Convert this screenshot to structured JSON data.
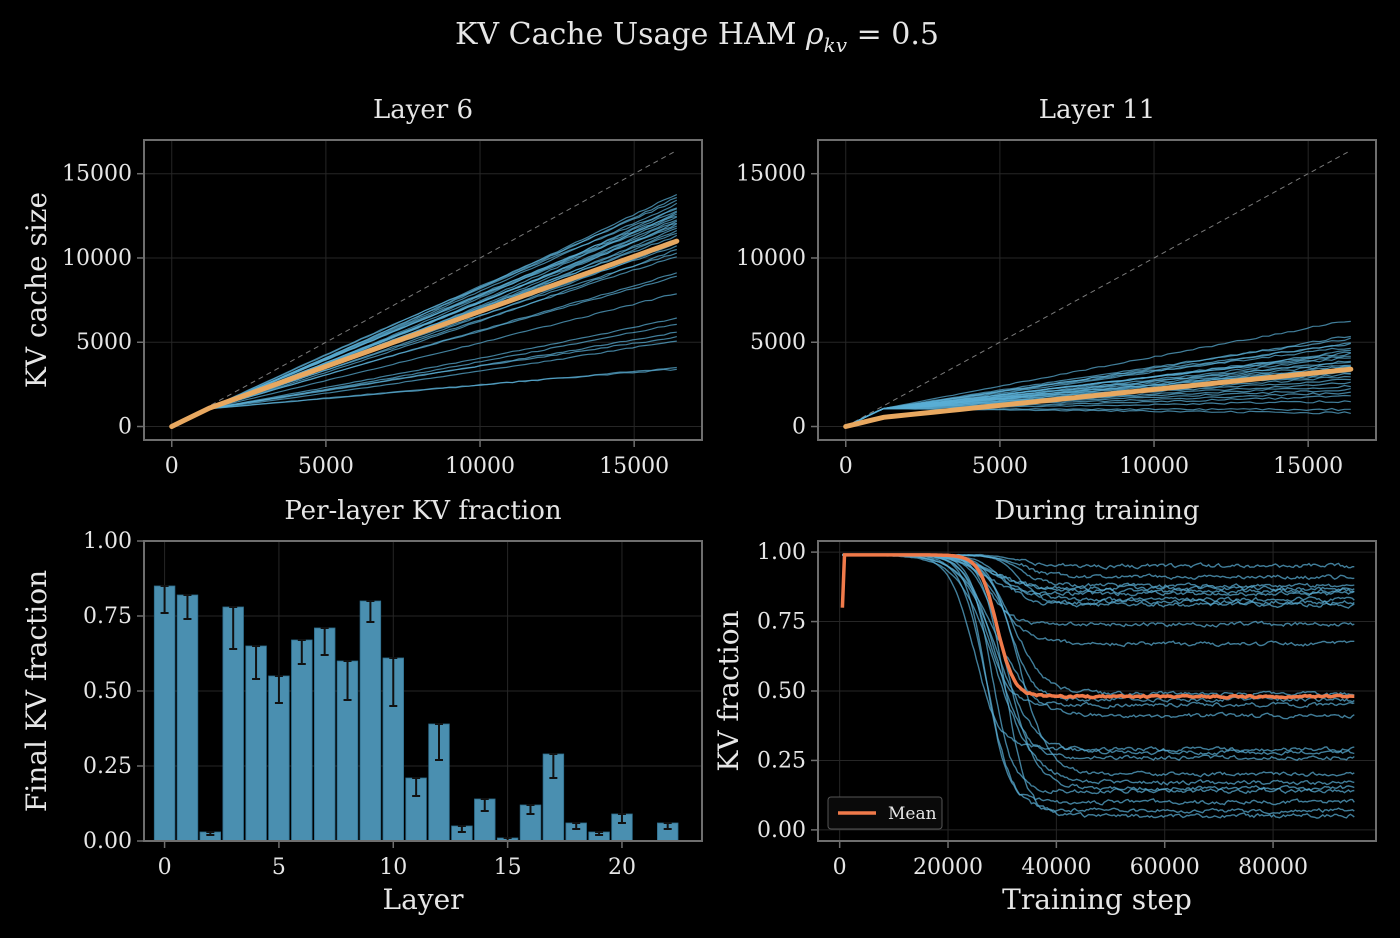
{
  "figure": {
    "title": "KV Cache Usage HAM ρkv = 0.5",
    "title_prefix": "KV Cache Usage HAM ",
    "title_symbol": "ρ",
    "title_subscript": "kv",
    "title_suffix": " = 0.5"
  },
  "colors": {
    "background": "#000000",
    "axis": "#6e6e6e",
    "grid": "#262626",
    "trace": "#5aaed6",
    "bar": "#4a8fb0",
    "mean_top": "#e8a860",
    "mean_bottom": "#f07a4a",
    "diag": "#7a7a7a",
    "text": "#e6e6e6"
  },
  "chart_data": [
    {
      "id": "layer6",
      "type": "line",
      "title": "Layer 6",
      "xlabel": "",
      "ylabel": "KV cache size",
      "xlim": [
        -900,
        17200
      ],
      "ylim": [
        -800,
        17000
      ],
      "xticks": [
        0,
        5000,
        10000,
        15000
      ],
      "xtick_labels": [
        "0",
        "5000",
        "10000",
        "15000"
      ],
      "yticks": [
        0,
        5000,
        10000,
        15000
      ],
      "ytick_labels": [
        "0",
        "5000",
        "10000",
        "15000"
      ],
      "grid": true,
      "diagonal": {
        "from": [
          0,
          0
        ],
        "to": [
          16384,
          16384
        ]
      },
      "trace_x_max": 16384,
      "trace_final_values": [
        13800,
        13600,
        13400,
        13200,
        13000,
        12900,
        12800,
        12700,
        12600,
        12500,
        12400,
        12300,
        12200,
        12100,
        12000,
        11900,
        11800,
        11600,
        11500,
        11300,
        11100,
        10900,
        10700,
        10500,
        10300,
        10100,
        9100,
        8900,
        7900,
        6400,
        6100,
        5600,
        5300,
        5100,
        3500,
        3400
      ],
      "mean": {
        "x": [
          0,
          16384
        ],
        "y": [
          0,
          11000
        ]
      }
    },
    {
      "id": "layer11",
      "type": "line",
      "title": "Layer 11",
      "xlabel": "",
      "ylabel": "",
      "xlim": [
        -900,
        17200
      ],
      "ylim": [
        -800,
        17000
      ],
      "xticks": [
        0,
        5000,
        10000,
        15000
      ],
      "xtick_labels": [
        "0",
        "5000",
        "10000",
        "15000"
      ],
      "yticks": [
        0,
        5000,
        10000,
        15000
      ],
      "ytick_labels": [
        "0",
        "5000",
        "10000",
        "15000"
      ],
      "grid": true,
      "diagonal": {
        "from": [
          0,
          0
        ],
        "to": [
          16384,
          16384
        ]
      },
      "trace_x_max": 16384,
      "trace_final_values": [
        6300,
        5400,
        5200,
        5000,
        4900,
        4700,
        4500,
        4400,
        4300,
        4200,
        4100,
        3900,
        3800,
        3700,
        3600,
        3500,
        3400,
        3300,
        3200,
        3100,
        3000,
        2800,
        2600,
        2400,
        2200,
        2000,
        1800,
        1500,
        1000,
        800
      ],
      "mean": {
        "x": [
          0,
          16384
        ],
        "y": [
          0,
          3400
        ]
      }
    },
    {
      "id": "per-layer",
      "type": "bar",
      "title": "Per-layer KV fraction",
      "xlabel": "Layer",
      "ylabel": "Final KV fraction",
      "xlim": [
        -0.9,
        23.5
      ],
      "ylim": [
        0,
        1.0
      ],
      "xticks": [
        0,
        5,
        10,
        15,
        20
      ],
      "xtick_labels": [
        "0",
        "5",
        "10",
        "15",
        "20"
      ],
      "yticks": [
        0,
        0.25,
        0.5,
        0.75,
        1.0
      ],
      "ytick_labels": [
        "0.00",
        "0.25",
        "0.50",
        "0.75",
        "1.00"
      ],
      "grid": true,
      "categories": [
        0,
        1,
        2,
        3,
        4,
        5,
        6,
        7,
        8,
        9,
        10,
        11,
        12,
        13,
        14,
        15,
        16,
        17,
        18,
        19,
        20,
        21,
        22
      ],
      "values": [
        0.85,
        0.82,
        0.03,
        0.78,
        0.65,
        0.55,
        0.67,
        0.71,
        0.6,
        0.8,
        0.61,
        0.21,
        0.39,
        0.05,
        0.14,
        0.01,
        0.12,
        0.29,
        0.06,
        0.03,
        0.09,
        0.0,
        0.06
      ],
      "errors": [
        0.09,
        0.08,
        0.01,
        0.14,
        0.11,
        0.09,
        0.08,
        0.09,
        0.13,
        0.07,
        0.16,
        0.06,
        0.12,
        0.02,
        0.04,
        0.01,
        0.03,
        0.08,
        0.02,
        0.01,
        0.03,
        0.0,
        0.02
      ]
    },
    {
      "id": "training",
      "type": "line",
      "title": "During training",
      "xlabel": "Training step",
      "ylabel": "KV fraction",
      "xlim": [
        -4000,
        99000
      ],
      "ylim": [
        -0.04,
        1.04
      ],
      "xticks": [
        0,
        20000,
        40000,
        60000,
        80000
      ],
      "xtick_labels": [
        "0",
        "20000",
        "40000",
        "60000",
        "80000"
      ],
      "yticks": [
        0,
        0.25,
        0.5,
        0.75,
        1.0
      ],
      "ytick_labels": [
        "0.00",
        "0.25",
        "0.50",
        "0.75",
        "1.00"
      ],
      "grid": true,
      "x_max": 95000,
      "trace_start": 0.99,
      "trace_final_values": [
        0.95,
        0.91,
        0.88,
        0.87,
        0.86,
        0.85,
        0.83,
        0.82,
        0.81,
        0.74,
        0.67,
        0.49,
        0.47,
        0.45,
        0.41,
        0.29,
        0.28,
        0.26,
        0.2,
        0.17,
        0.15,
        0.14,
        0.1,
        0.07,
        0.05
      ],
      "mean": {
        "start": 0.8,
        "plateau": 0.99,
        "drop_center": 29000,
        "final": 0.48
      },
      "legend": {
        "label": "Mean",
        "position": "lower-left"
      }
    }
  ]
}
